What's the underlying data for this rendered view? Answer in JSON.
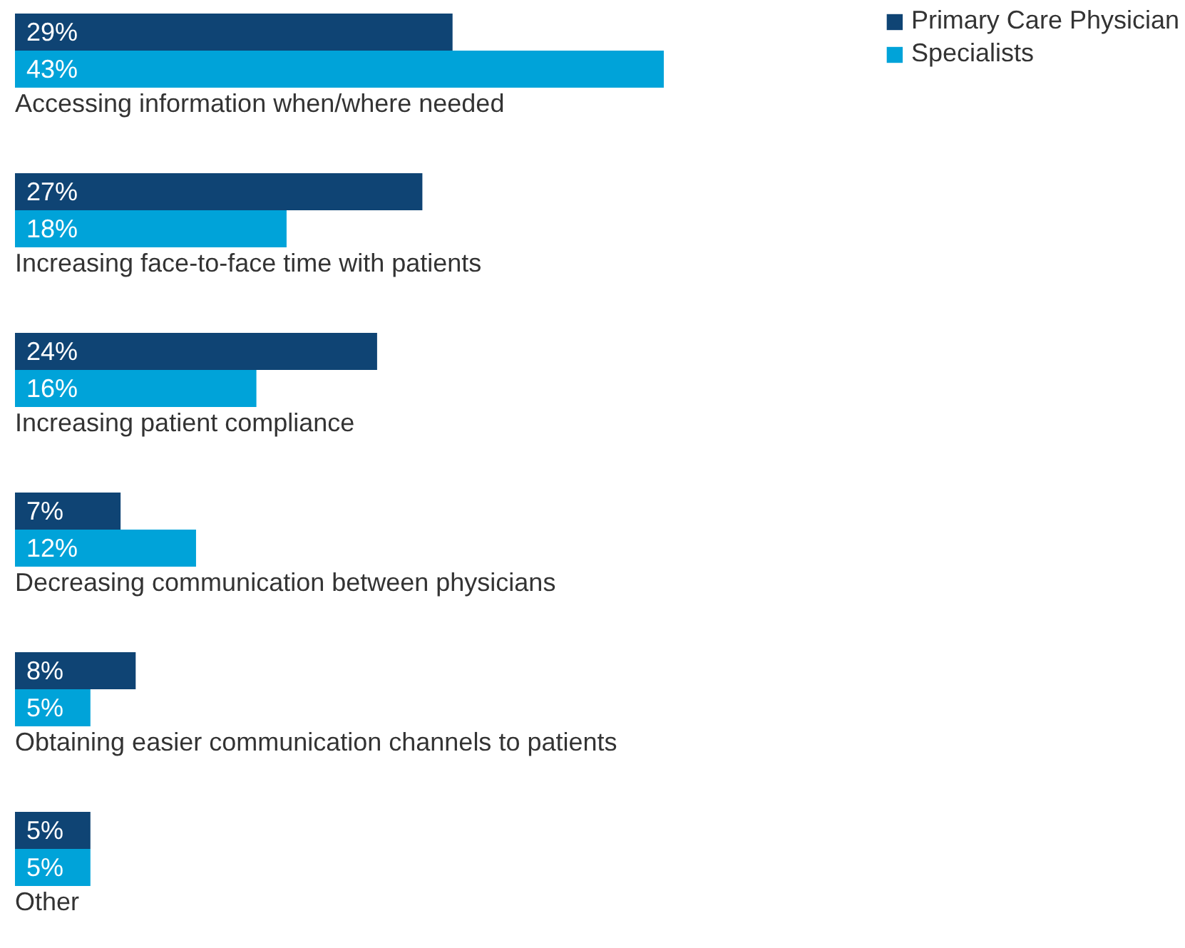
{
  "chart_data": {
    "type": "bar",
    "orientation": "horizontal",
    "legend": "top right",
    "categories": [
      "Accessing information when/where needed",
      "Increasing face-to-face time with patients",
      "Increasing patient compliance",
      "Decreasing communication between physicians",
      "Obtaining easier communication channels to patients",
      "Other"
    ],
    "series": [
      {
        "name": "Primary Care Physician",
        "color": "#0f4474",
        "values": [
          29,
          27,
          24,
          7,
          8,
          5
        ],
        "value_labels": [
          "29%",
          "27%",
          "24%",
          "7%",
          "8%",
          "5%"
        ]
      },
      {
        "name": "Specialists",
        "color": "#00a3d9",
        "values": [
          43,
          18,
          16,
          12,
          5,
          5
        ],
        "value_labels": [
          "43%",
          "18%",
          "16%",
          "12%",
          "5%",
          "5%"
        ]
      }
    ]
  }
}
